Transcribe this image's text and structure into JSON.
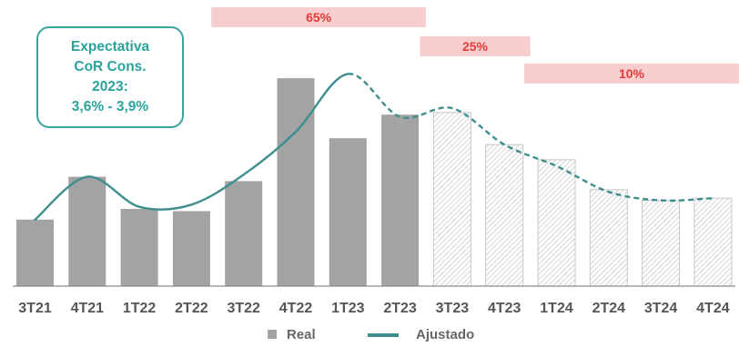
{
  "chart_data": {
    "type": "bar",
    "categories": [
      "3T21",
      "4T21",
      "1T22",
      "2T22",
      "3T22",
      "4T22",
      "1T23",
      "2T23",
      "3T23",
      "4T23",
      "1T24",
      "2T24",
      "3T24",
      "4T24"
    ],
    "ylim": [
      0,
      1
    ],
    "series": [
      {
        "name": "Real",
        "type": "bar",
        "values": [
          0.31,
          0.51,
          0.36,
          0.35,
          0.49,
          0.97,
          0.69,
          0.8,
          null,
          null,
          null,
          null,
          null,
          null
        ]
      },
      {
        "type": "bar",
        "values": [
          null,
          null,
          null,
          null,
          null,
          null,
          null,
          null,
          0.81,
          0.66,
          0.59,
          0.45,
          0.4,
          0.41
        ]
      },
      {
        "name": "Ajustado",
        "type": "line",
        "values": [
          0.31,
          0.51,
          0.37,
          0.38,
          0.52,
          0.72,
          0.99,
          0.79,
          0.83,
          0.66,
          0.56,
          0.44,
          0.4,
          0.41
        ]
      }
    ],
    "bands": [
      {
        "label": "65%",
        "from": "3T22",
        "to": "2T23"
      },
      {
        "label": "25%",
        "from": "3T23",
        "to": "4T23"
      },
      {
        "label": "10%",
        "from": "1T24",
        "to": "4T24"
      }
    ],
    "callout": [
      "Expectativa",
      "CoR Cons.",
      "2023:",
      "3,6% - 3,9%"
    ],
    "colors": {
      "real_bar": "#a3a3a3",
      "forecast_hatch": "#b0b0b0",
      "line": "#3d8e8c",
      "band_fill": "#f8cdcd",
      "band_text": "#e23a3a",
      "callout_border": "#3aa5a0",
      "callout_text": "#2aa39c",
      "axis": "#8c8c8c"
    },
    "legend": [
      {
        "label": "Real",
        "shape": "square"
      },
      {
        "label": "Ajustado",
        "shape": "line"
      }
    ],
    "legend_position": "bottom",
    "grid": false
  }
}
